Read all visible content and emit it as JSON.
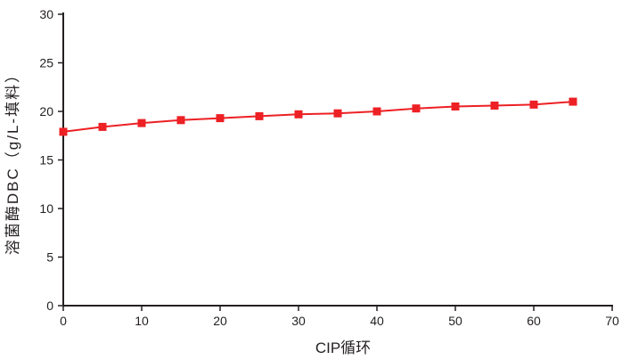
{
  "page": {
    "background": "#ffffff"
  },
  "chart_data": {
    "type": "line",
    "title": "",
    "xlabel": "CIP循环",
    "ylabel": "溶菌酶DBC（g/L-填料）",
    "x": [
      0,
      5,
      10,
      15,
      20,
      25,
      30,
      35,
      40,
      45,
      50,
      55,
      60,
      65
    ],
    "series": [
      {
        "name": "溶菌酶DBC",
        "values": [
          17.9,
          18.4,
          18.8,
          19.1,
          19.3,
          19.5,
          19.7,
          19.8,
          20.0,
          20.3,
          20.5,
          20.6,
          20.7,
          21.0
        ],
        "color": "#ed2024",
        "marker": "square",
        "marker_size": 9,
        "line_width": 2
      }
    ],
    "xlim": [
      0,
      70
    ],
    "ylim": [
      0,
      30
    ],
    "x_ticks": [
      0,
      10,
      20,
      30,
      40,
      50,
      60,
      70
    ],
    "y_ticks": [
      0,
      5,
      10,
      15,
      20,
      25,
      30
    ],
    "grid": false,
    "legend_position": "none",
    "axis_color": "#231f20",
    "text_color": "#231f20"
  }
}
